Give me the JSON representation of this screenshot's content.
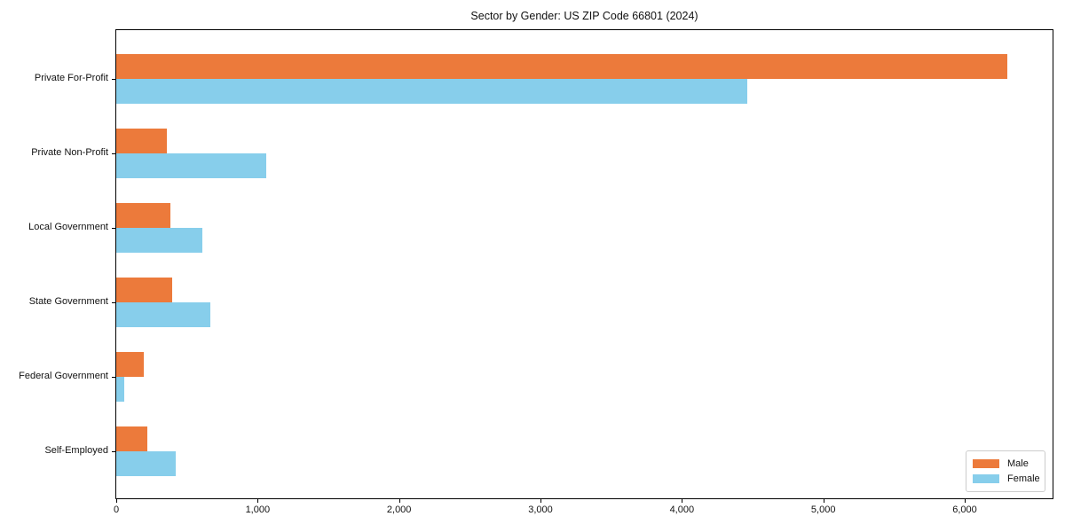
{
  "chart_data": {
    "type": "bar",
    "orientation": "horizontal",
    "title": "Sector by Gender: US ZIP Code 66801 (2024)",
    "xlabel": "",
    "ylabel": "",
    "categories": [
      "Private For-Profit",
      "Private Non-Profit",
      "Local Government",
      "State Government",
      "Federal Government",
      "Self-Employed"
    ],
    "series": [
      {
        "name": "Male",
        "color": "#ec7a3b",
        "values": [
          6300,
          355,
          380,
          397,
          196,
          221
        ]
      },
      {
        "name": "Female",
        "color": "#87ceeb",
        "values": [
          4460,
          1060,
          610,
          663,
          55,
          422
        ]
      }
    ],
    "xlim": [
      0,
      6615
    ],
    "x_ticks": [
      0,
      1000,
      2000,
      3000,
      4000,
      5000,
      6000
    ],
    "x_tick_labels": [
      "0",
      "1,000",
      "2,000",
      "3,000",
      "4,000",
      "5,000",
      "6,000"
    ],
    "grid": false,
    "legend_position": "lower-right",
    "legend": {
      "items": [
        {
          "label": "Male",
          "color": "#ec7a3b"
        },
        {
          "label": "Female",
          "color": "#87ceeb"
        }
      ]
    }
  }
}
